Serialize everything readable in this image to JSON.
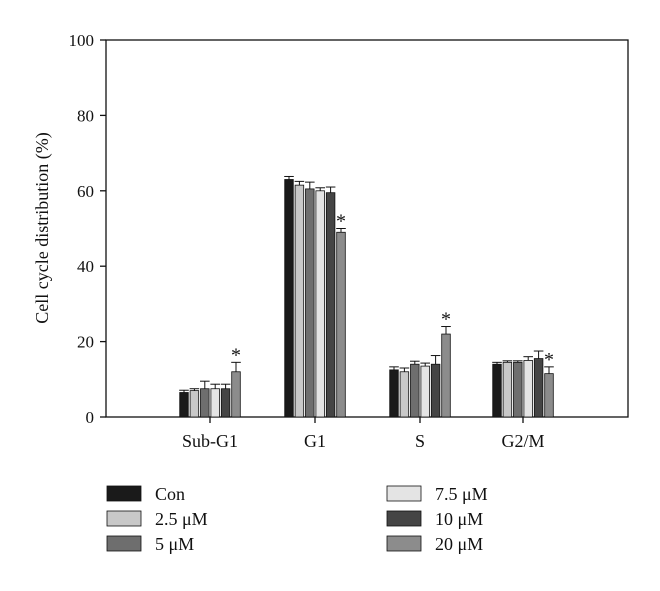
{
  "chart_data": {
    "type": "bar",
    "title": "",
    "xlabel": "",
    "ylabel": "Cell cycle distribution (%)",
    "ylim": [
      0,
      100
    ],
    "yticks": [
      0,
      20,
      40,
      60,
      80,
      100
    ],
    "categories": [
      "Sub-G1",
      "G1",
      "S",
      "G2/M"
    ],
    "legend_position": "bottom",
    "grid": false,
    "significance_marker": "*",
    "series": [
      {
        "name": "Con",
        "color": "#1a1a1a",
        "values": [
          6.5,
          63.0,
          12.5,
          14.0
        ],
        "errors": [
          0.6,
          0.8,
          0.8,
          0.5
        ],
        "significant": [
          false,
          false,
          false,
          false
        ]
      },
      {
        "name": "2.5 μM",
        "color": "#c8c8c8",
        "values": [
          7.0,
          61.5,
          12.0,
          14.5
        ],
        "errors": [
          0.5,
          1.0,
          1.0,
          0.4
        ],
        "significant": [
          false,
          false,
          false,
          false
        ]
      },
      {
        "name": "5 μM",
        "color": "#6e6e6e",
        "values": [
          7.5,
          60.5,
          14.0,
          14.5
        ],
        "errors": [
          2.0,
          1.8,
          0.8,
          0.4
        ],
        "significant": [
          false,
          false,
          false,
          false
        ]
      },
      {
        "name": "7.5 μM",
        "color": "#e4e4e4",
        "values": [
          7.5,
          60.0,
          13.5,
          15.0
        ],
        "errors": [
          1.2,
          0.8,
          0.8,
          1.0
        ],
        "significant": [
          false,
          false,
          false,
          false
        ]
      },
      {
        "name": "10 μM",
        "color": "#454545",
        "values": [
          7.5,
          59.5,
          14.0,
          15.5
        ],
        "errors": [
          1.2,
          1.5,
          2.3,
          2.0
        ],
        "significant": [
          false,
          false,
          false,
          false
        ]
      },
      {
        "name": "20 μM",
        "color": "#8c8c8c",
        "values": [
          12.0,
          49.0,
          22.0,
          11.5
        ],
        "errors": [
          2.5,
          1.0,
          2.0,
          1.8
        ],
        "significant": [
          true,
          true,
          true,
          true
        ]
      }
    ]
  }
}
